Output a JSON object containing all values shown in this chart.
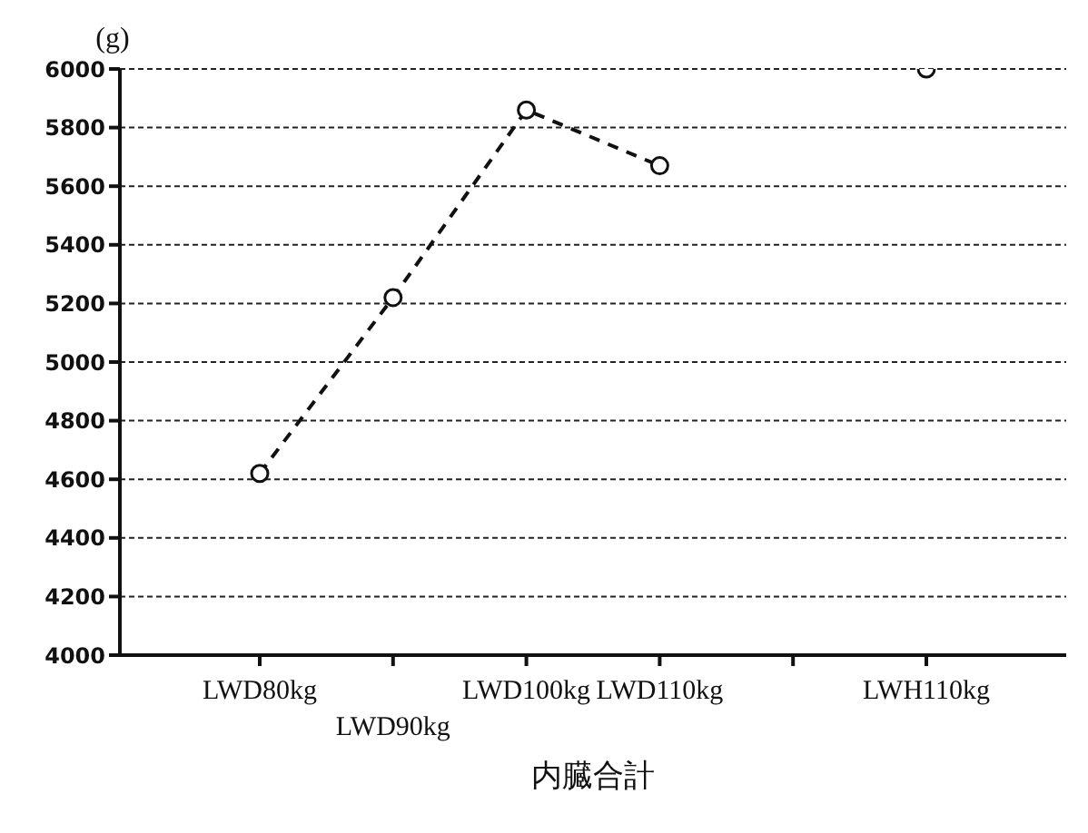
{
  "chart_data": {
    "type": "line",
    "xlabel": "内臓合計",
    "ylabel": "(g)",
    "categories": [
      "LWD80kg",
      "LWD90kg",
      "LWD100kg",
      "LWD110kg",
      null,
      "LWH110kg"
    ],
    "series": [
      {
        "color": "#111111",
        "values": [
          4620,
          5220,
          5860,
          5670,
          null,
          6000
        ]
      }
    ],
    "ylim": [
      4000,
      6000
    ],
    "yticks": [
      4000,
      4200,
      4400,
      4600,
      4800,
      5000,
      5200,
      5400,
      5600,
      5800,
      6000
    ],
    "grid": "y",
    "marker": "circle",
    "line_style": "dashed"
  }
}
